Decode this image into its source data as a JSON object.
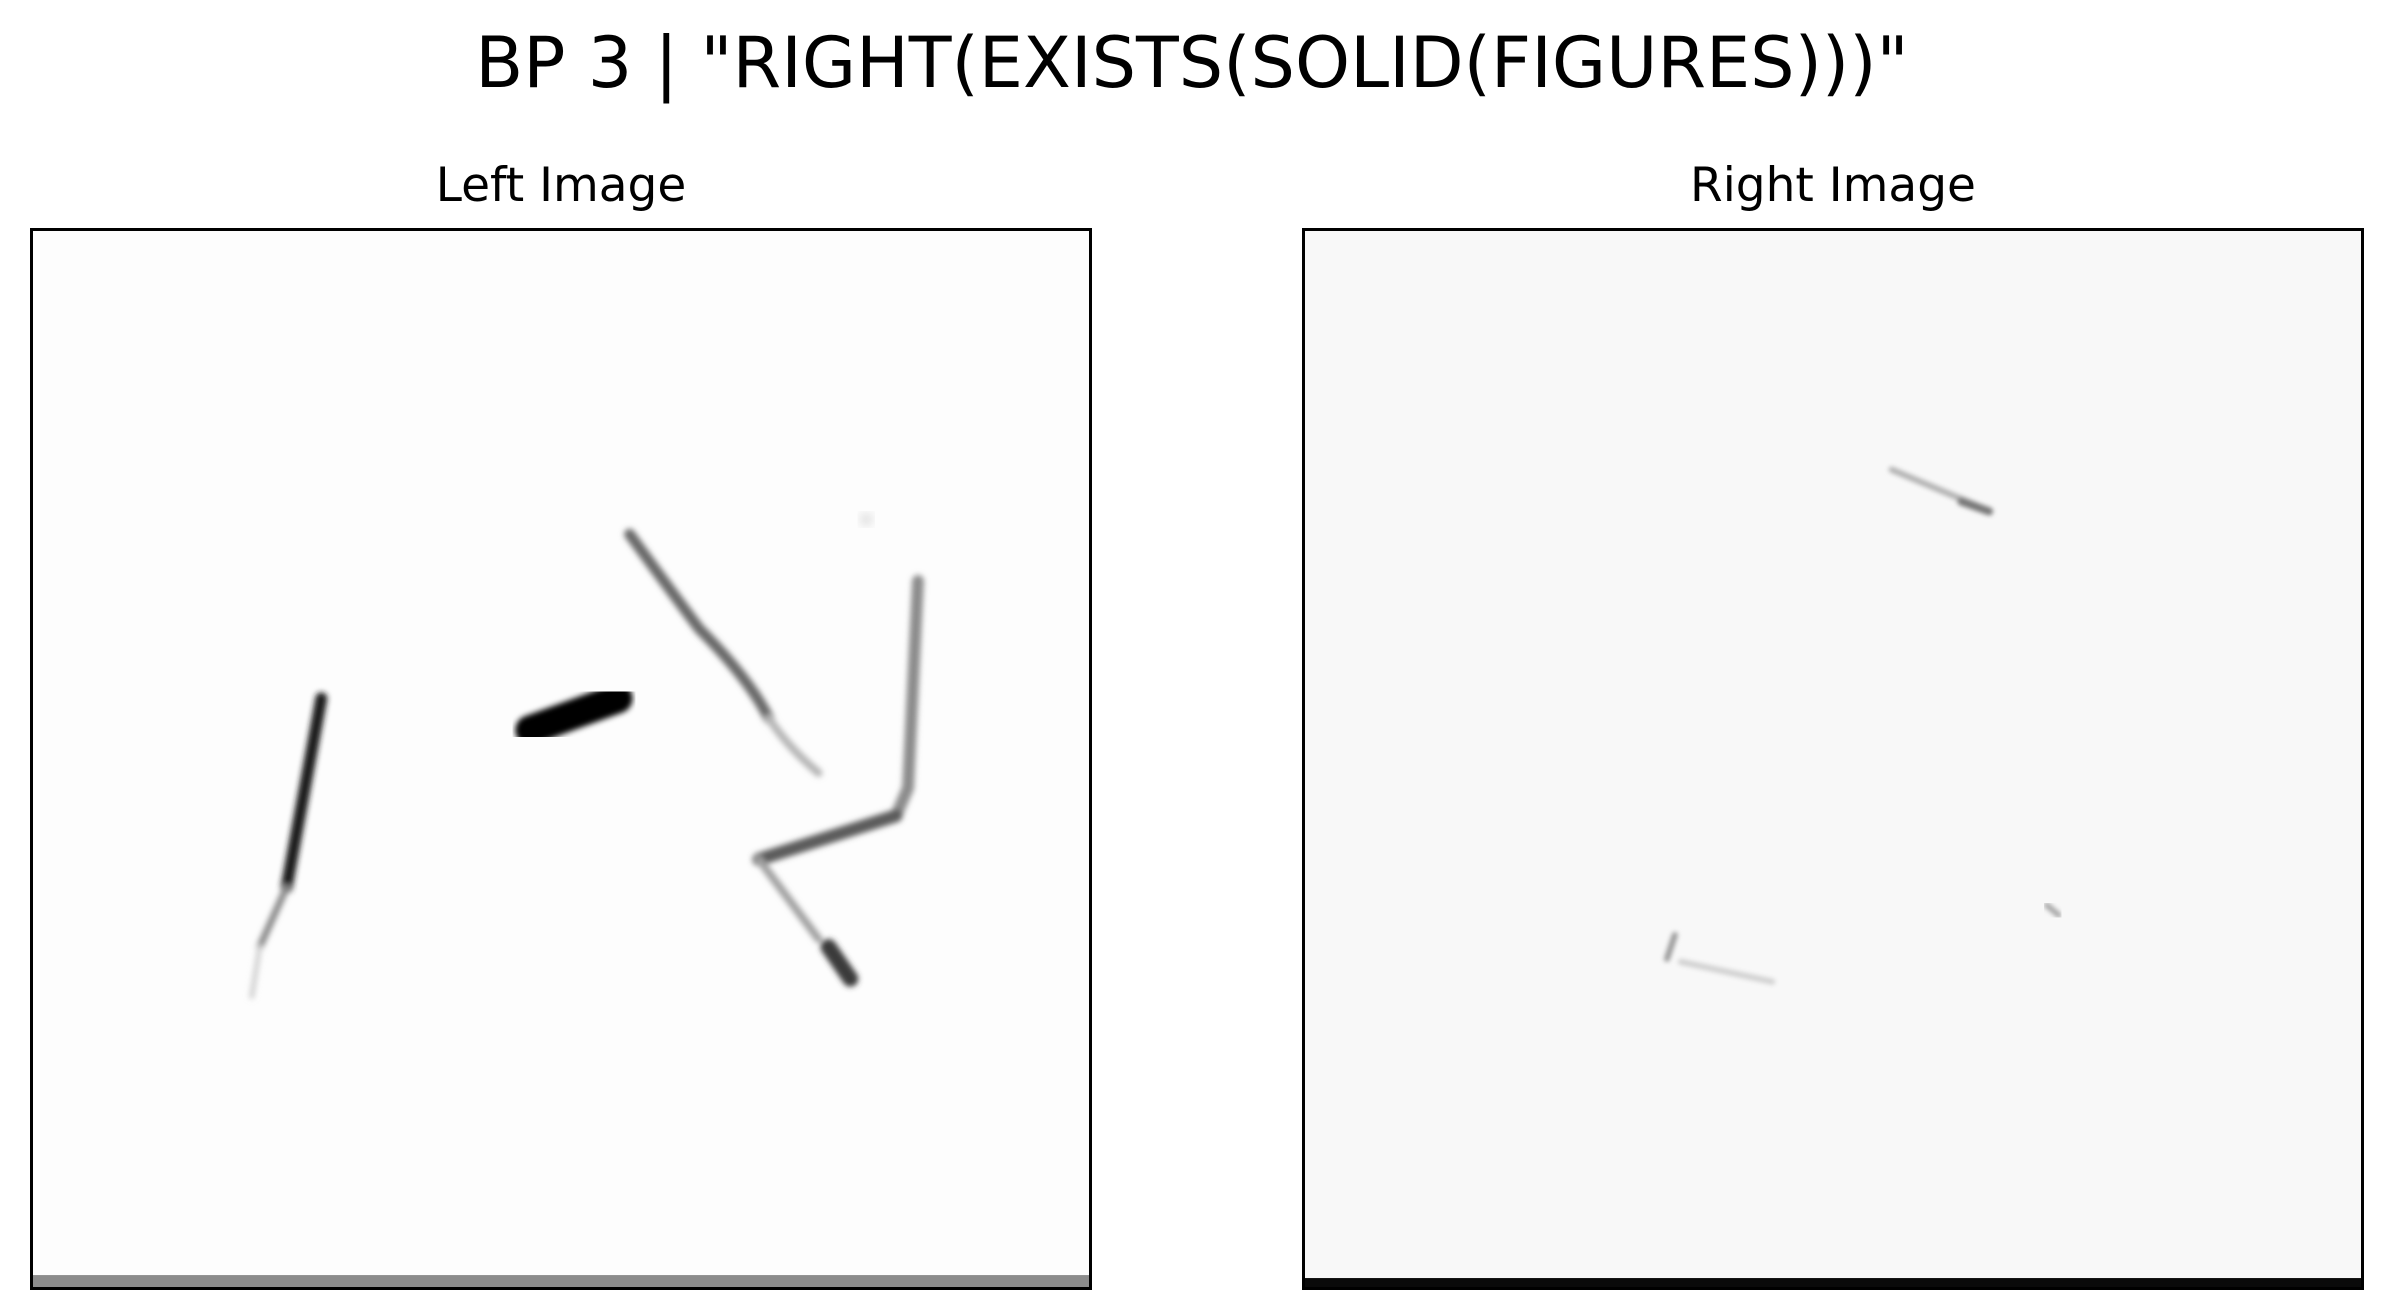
{
  "title": "BP 3 | \"RIGHT(EXISTS(SOLID(FIGURES)))\"",
  "panels": {
    "left": {
      "title": "Left Image"
    },
    "right": {
      "title": "Right Image"
    }
  },
  "colors": {
    "background": "#ffffff",
    "frame": "#000000",
    "ink": "#111111",
    "faint_ink": "#9a9a9a"
  }
}
